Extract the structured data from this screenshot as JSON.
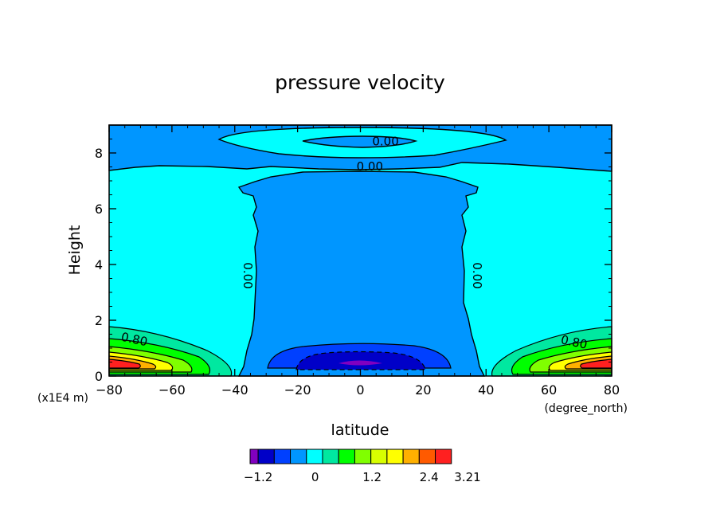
{
  "chart_data": {
    "type": "contour",
    "title": "pressure velocity",
    "xlabel": "latitude",
    "ylabel": "Height",
    "x_unit": "(degree_north)",
    "y_unit": "(x1E4 m)",
    "xlim": [
      -80,
      80
    ],
    "ylim": [
      0,
      9
    ],
    "xticks": [
      -80,
      -60,
      -40,
      -20,
      0,
      20,
      40,
      60,
      80
    ],
    "yticks": [
      0,
      2,
      4,
      6,
      8
    ],
    "contour_labels": [
      {
        "text": "0.00",
        "x": 8,
        "y": 8.4
      },
      {
        "text": "0.00",
        "x": 3,
        "y": 7.5
      },
      {
        "text": "0.00",
        "x": -36,
        "y": 3.6
      },
      {
        "text": "0.00",
        "x": 37,
        "y": 3.6
      },
      {
        "text": "0.80",
        "x": -72,
        "y": 1.3
      },
      {
        "text": "0.80",
        "x": 68,
        "y": 1.2
      }
    ],
    "colorbar": {
      "levels": [
        -1.2,
        -0.9,
        -0.6,
        -0.3,
        0,
        0.3,
        0.6,
        0.9,
        1.2,
        1.5,
        1.8,
        2.1,
        2.4,
        2.7,
        3.0,
        3.21
      ],
      "colors": [
        "#8000c0",
        "#0000c8",
        "#0040ff",
        "#0096ff",
        "#00ffff",
        "#00e8a0",
        "#00ff00",
        "#80ff00",
        "#d8ff00",
        "#ffff00",
        "#ffb000",
        "#ff5a00",
        "#ff2020"
      ],
      "tick_labels": [
        "-1.2",
        "0",
        "1.2",
        "2.4",
        "3.21"
      ],
      "tick_values": [
        -1.2,
        0,
        1.2,
        2.4,
        3.21
      ]
    }
  }
}
